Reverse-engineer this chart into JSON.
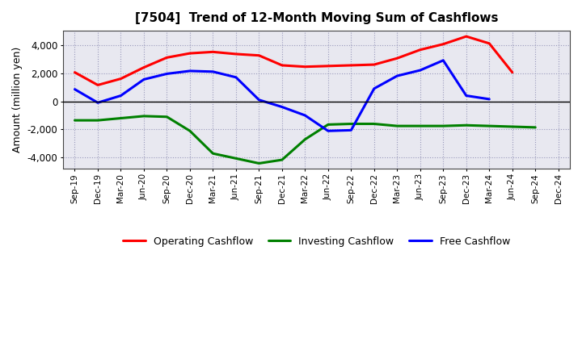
{
  "title": "[7504]  Trend of 12-Month Moving Sum of Cashflows",
  "ylabel": "Amount (million yen)",
  "x_labels": [
    "Sep-19",
    "Dec-19",
    "Mar-20",
    "Jun-20",
    "Sep-20",
    "Dec-20",
    "Mar-21",
    "Jun-21",
    "Sep-21",
    "Dec-21",
    "Mar-22",
    "Jun-22",
    "Sep-22",
    "Dec-22",
    "Mar-23",
    "Jun-23",
    "Sep-23",
    "Dec-23",
    "Mar-24",
    "Jun-24",
    "Sep-24",
    "Dec-24"
  ],
  "operating": [
    2050,
    1150,
    1600,
    2400,
    3100,
    3400,
    3500,
    3350,
    3250,
    2550,
    2450,
    2500,
    2550,
    2600,
    3050,
    3650,
    4050,
    4600,
    4100,
    2050,
    null,
    null
  ],
  "investing": [
    -1350,
    -1350,
    -1200,
    -1050,
    -1100,
    -2100,
    -3700,
    -4050,
    -4400,
    -4150,
    -2700,
    -1650,
    -1600,
    -1600,
    -1750,
    -1750,
    -1750,
    -1700,
    -1750,
    -1800,
    -1850,
    null
  ],
  "free": [
    850,
    -100,
    400,
    1550,
    1950,
    2150,
    2100,
    1700,
    100,
    -400,
    -1000,
    -2100,
    -2050,
    900,
    1800,
    2200,
    2900,
    400,
    150,
    null,
    null,
    null
  ],
  "ylim": [
    -4800,
    5000
  ],
  "yticks": [
    -4000,
    -2000,
    0,
    2000,
    4000
  ],
  "operating_color": "#ff0000",
  "investing_color": "#008000",
  "free_color": "#0000ff",
  "line_width": 2.2,
  "bg_color": "#ffffff",
  "plot_bg_color": "#e8e8f0",
  "grid_color": "#9999bb"
}
